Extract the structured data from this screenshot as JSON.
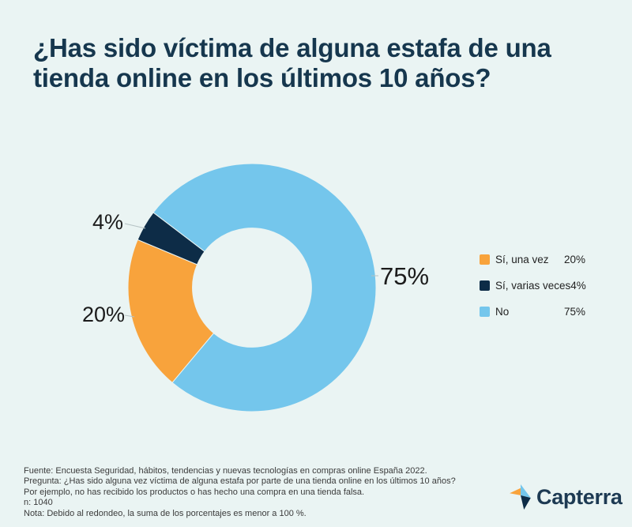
{
  "title_lines": [
    "¿Has sido víctima de alguna estafa de una",
    "tienda online en los últimos 10 años?"
  ],
  "colors": {
    "background": "#EAF4F3",
    "title_text": "#16374E",
    "orange": "#F8A33C",
    "navy": "#0D2C47",
    "light_blue": "#74C6EC",
    "brand_text": "#1D3A53",
    "leader_line": "#B5C2C4"
  },
  "chart_data": {
    "type": "pie",
    "subtype": "donut",
    "title": "¿Has sido víctima de alguna estafa de una tienda online en los últimos 10 años?",
    "start_angle_deg": 220,
    "direction": "clockwise",
    "inner_radius_ratio": 0.48,
    "legend_position": "right",
    "slices": [
      {
        "label": "Sí, una vez",
        "value": 20,
        "display": "20%",
        "color": "#F8A33C"
      },
      {
        "label": "Sí, varias veces",
        "value": 4,
        "display": "4%",
        "color": "#0D2C47"
      },
      {
        "label": "No",
        "value": 75,
        "display": "75%",
        "color": "#74C6EC"
      }
    ]
  },
  "footer": {
    "lines": [
      "Fuente: Encuesta Seguridad, hábitos, tendencias y nuevas tecnologías en compras online España 2022.",
      "Pregunta: ¿Has sido alguna vez víctima de alguna estafa por parte de una tienda online en los últimos 10 años?",
      "Por ejemplo, no has recibido los productos o has hecho una compra en una tienda falsa.",
      "n: 1040",
      "Nota: Debido al redondeo, la suma de los porcentajes es menor a 100 %."
    ]
  },
  "branding": {
    "name": "Capterra"
  }
}
